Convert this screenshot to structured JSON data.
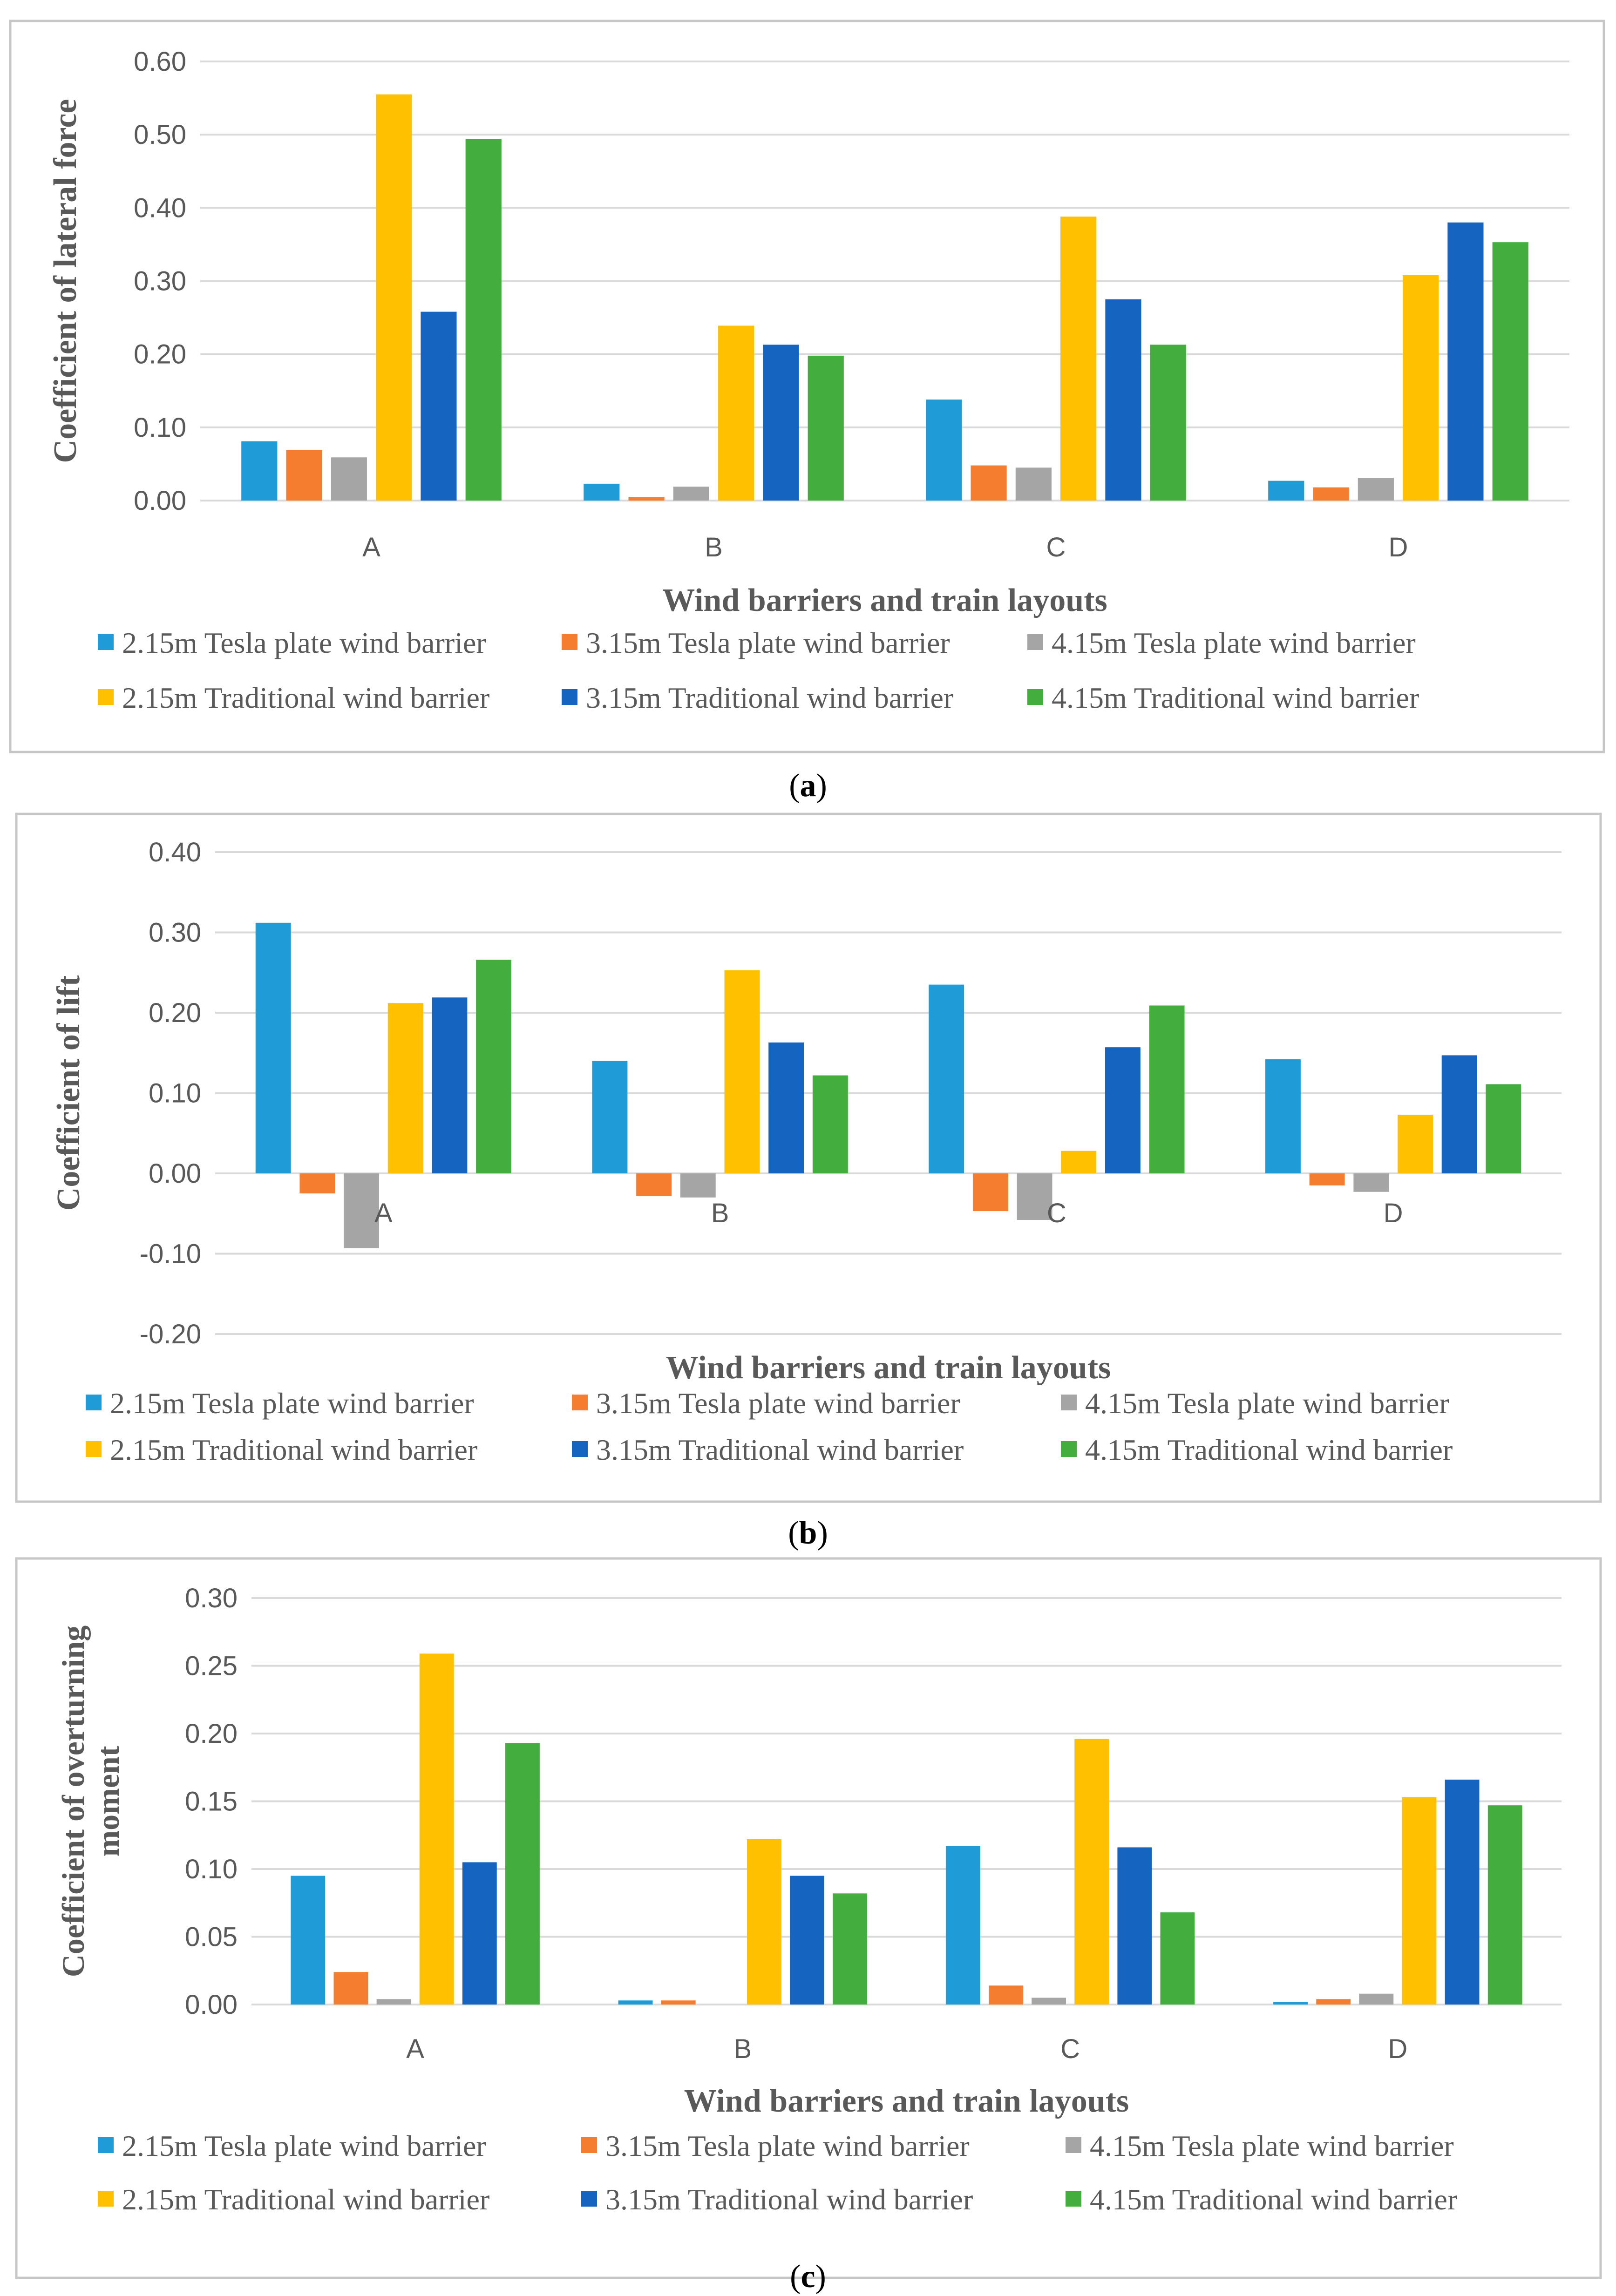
{
  "chart_data": [
    {
      "type": "bar",
      "panel_label": "a",
      "categories": [
        "A",
        "B",
        "C",
        "D"
      ],
      "ylabel": "Coefficient of lateral force",
      "xlabel": "Wind barriers and train layouts",
      "ylim": [
        0,
        0.6
      ],
      "yticks": [
        "0.00",
        "0.10",
        "0.20",
        "0.30",
        "0.40",
        "0.50",
        "0.60"
      ],
      "legend_position": "bottom",
      "series": [
        {
          "name": "2.15m Tesla plate wind barrier",
          "color": "#1f9bd7",
          "values": [
            0.081,
            0.023,
            0.138,
            0.027
          ]
        },
        {
          "name": "3.15m Tesla plate wind barrier",
          "color": "#f57d2f",
          "values": [
            0.069,
            0.005,
            0.048,
            0.018
          ]
        },
        {
          "name": "4.15m Tesla plate wind barrier",
          "color": "#a5a5a5",
          "values": [
            0.059,
            0.019,
            0.045,
            0.031
          ]
        },
        {
          "name": "2.15m Traditional wind barrier",
          "color": "#ffc000",
          "values": [
            0.555,
            0.239,
            0.388,
            0.308
          ]
        },
        {
          "name": "3.15m Traditional wind barrier",
          "color": "#1565c0",
          "values": [
            0.258,
            0.213,
            0.275,
            0.38
          ]
        },
        {
          "name": "4.15m Traditional wind barrier",
          "color": "#43ad3e",
          "values": [
            0.494,
            0.198,
            0.213,
            0.353
          ]
        }
      ]
    },
    {
      "type": "bar",
      "panel_label": "b",
      "categories": [
        "A",
        "B",
        "C",
        "D"
      ],
      "ylabel": "Coefficient of lift",
      "xlabel": "Wind barriers and train layouts",
      "ylim": [
        -0.2,
        0.4
      ],
      "yticks": [
        "-0.20",
        "-0.10",
        "0.00",
        "0.10",
        "0.20",
        "0.30",
        "0.40"
      ],
      "legend_position": "bottom",
      "series": [
        {
          "name": "2.15m Tesla plate wind barrier",
          "color": "#1f9bd7",
          "values": [
            0.312,
            0.14,
            0.235,
            0.142
          ]
        },
        {
          "name": "3.15m Tesla plate wind barrier",
          "color": "#f57d2f",
          "values": [
            -0.025,
            -0.028,
            -0.047,
            -0.015
          ]
        },
        {
          "name": "4.15m Tesla plate wind barrier",
          "color": "#a5a5a5",
          "values": [
            -0.093,
            -0.03,
            -0.058,
            -0.023
          ]
        },
        {
          "name": "2.15m Traditional wind barrier",
          "color": "#ffc000",
          "values": [
            0.212,
            0.253,
            0.028,
            0.073
          ]
        },
        {
          "name": "3.15m Traditional wind barrier",
          "color": "#1565c0",
          "values": [
            0.219,
            0.163,
            0.157,
            0.147
          ]
        },
        {
          "name": "4.15m Traditional wind barrier",
          "color": "#43ad3e",
          "values": [
            0.266,
            0.122,
            0.209,
            0.111
          ]
        }
      ]
    },
    {
      "type": "bar",
      "panel_label": "c",
      "categories": [
        "A",
        "B",
        "C",
        "D"
      ],
      "ylabel": [
        "Coefficient of overturning",
        "moment"
      ],
      "xlabel": "Wind barriers and train layouts",
      "ylim": [
        0,
        0.3
      ],
      "yticks": [
        "0.00",
        "0.05",
        "0.10",
        "0.15",
        "0.20",
        "0.25",
        "0.30"
      ],
      "legend_position": "bottom",
      "series": [
        {
          "name": "2.15m Tesla plate wind barrier",
          "color": "#1f9bd7",
          "values": [
            0.095,
            0.003,
            0.117,
            0.002
          ]
        },
        {
          "name": "3.15m Tesla plate wind barrier",
          "color": "#f57d2f",
          "values": [
            0.024,
            0.003,
            0.014,
            0.004
          ]
        },
        {
          "name": "4.15m Tesla plate wind barrier",
          "color": "#a5a5a5",
          "values": [
            0.004,
            0.0,
            0.005,
            0.008
          ]
        },
        {
          "name": "2.15m Traditional wind barrier",
          "color": "#ffc000",
          "values": [
            0.259,
            0.122,
            0.196,
            0.153
          ]
        },
        {
          "name": "3.15m Traditional wind barrier",
          "color": "#1565c0",
          "values": [
            0.105,
            0.095,
            0.116,
            0.166
          ]
        },
        {
          "name": "4.15m Traditional wind barrier",
          "color": "#43ad3e",
          "values": [
            0.193,
            0.082,
            0.068,
            0.147
          ]
        }
      ]
    }
  ]
}
